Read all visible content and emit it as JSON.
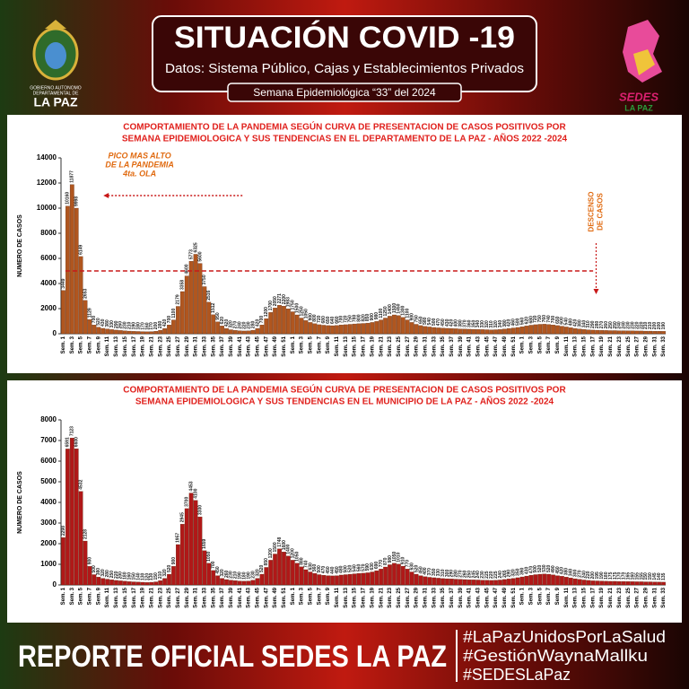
{
  "header": {
    "title": "SITUACIÓN COVID -19",
    "subtitle": "Datos: Sistema Público, Cajas y Establecimientos Privados",
    "week": "Semana  Epidemiológica “33” del  2024",
    "left_logo": [
      "GOBIERNO AUTONOMO",
      "DEPARTAMENTAL DE",
      "LA PAZ"
    ],
    "right_logo": [
      "SEDES",
      "LA PAZ"
    ]
  },
  "footer": {
    "title": "REPORTE OFICIAL SEDES LA PAZ",
    "hashtags": [
      "#LaPazUnidosPorLaSalud",
      "#GestiónWaynaMallku",
      "#SEDESLaPaz"
    ]
  },
  "chart_data": [
    {
      "type": "bar",
      "title": [
        "COMPORTAMIENTO DE LA PANDEMIA  SEGÚN CURVA DE PRESENTACION DE CASOS POSITIVOS POR",
        "SEMANA EPIDEMIOLOGICA Y SUS TENDENCIAS  EN EL DEPARTAMENTO DE LA PAZ  - AÑOS 2022 -2024"
      ],
      "y_label": "NUMERO DE CASOS",
      "color": "#b0561f",
      "ylim": [
        0,
        14000
      ],
      "yticks": [
        0,
        2000,
        4000,
        6000,
        8000,
        10000,
        12000,
        14000
      ],
      "reference_line": 5000,
      "annotations": [
        [
          "PICO MAS ALTO",
          "DE LA PANDEMIA",
          "4ta.  OLA"
        ],
        [
          "DESCENSO",
          "DE CASOS"
        ]
      ],
      "categories": [
        "Sem. 1",
        null,
        "Sem. 3",
        null,
        "Sem. 5",
        null,
        "Sem. 7",
        null,
        "Sem. 9",
        null,
        "Sem. 11",
        null,
        "Sem. 13",
        null,
        "Sem. 15",
        null,
        "Sem. 17",
        null,
        "Sem. 19",
        null,
        "Sem. 21",
        null,
        "Sem. 23",
        null,
        "Sem. 25",
        null,
        "Sem. 27",
        null,
        "Sem. 29",
        null,
        "Sem. 31",
        null,
        "Sem. 33",
        null,
        "Sem. 35",
        null,
        "Sem. 37",
        null,
        "Sem. 39",
        null,
        "Sem. 41",
        null,
        "Sem. 43",
        null,
        "Sem. 45",
        null,
        "Sem. 47",
        null,
        "Sem. 49",
        null,
        "Sem. 51",
        null,
        "Sem. 1",
        null,
        "Sem. 3",
        null,
        "Sem. 5",
        null,
        "Sem. 7",
        null,
        "Sem. 9",
        null,
        "Sem. 11",
        null,
        "Sem. 13",
        null,
        "Sem. 15",
        null,
        "Sem. 17",
        null,
        "Sem. 19",
        null,
        "Sem. 21",
        null,
        "Sem. 23",
        null,
        "Sem. 25",
        null,
        "Sem. 27",
        null,
        "Sem. 29",
        null,
        "Sem. 31",
        null,
        "Sem. 33",
        null,
        "Sem. 35",
        null,
        "Sem. 37",
        null,
        "Sem. 39",
        null,
        "Sem. 41",
        null,
        "Sem. 43",
        null,
        "Sem. 45",
        null,
        "Sem. 47",
        null,
        "Sem. 49",
        null,
        "Sem. 51",
        null,
        "Sem. 1",
        null,
        "Sem. 3",
        null,
        "Sem. 5",
        null,
        "Sem. 7",
        null,
        "Sem. 9",
        null,
        "Sem. 11",
        null,
        "Sem. 13",
        null,
        "Sem. 15",
        null,
        "Sem. 17",
        null,
        "Sem. 19",
        null,
        "Sem. 21",
        null,
        "Sem. 23",
        null,
        "Sem. 25",
        null,
        "Sem. 27",
        null,
        "Sem. 29",
        null,
        "Sem. 31",
        null,
        "Sem. 33"
      ],
      "values": [
        3449,
        10160,
        11877,
        9998,
        6149,
        2653,
        1129,
        700,
        520,
        430,
        380,
        330,
        290,
        260,
        230,
        210,
        190,
        180,
        170,
        160,
        170,
        200,
        280,
        420,
        700,
        1100,
        2179,
        3358,
        4600,
        5773,
        6325,
        5600,
        3750,
        2516,
        1512,
        950,
        620,
        420,
        320,
        270,
        240,
        220,
        230,
        280,
        420,
        700,
        1200,
        1700,
        2050,
        2271,
        2200,
        1983,
        1750,
        1500,
        1250,
        1050,
        900,
        800,
        720,
        680,
        650,
        640,
        660,
        700,
        720,
        750,
        780,
        800,
        820,
        850,
        900,
        980,
        1100,
        1250,
        1400,
        1500,
        1450,
        1300,
        1100,
        900,
        750,
        650,
        580,
        540,
        500,
        470,
        450,
        430,
        420,
        400,
        380,
        370,
        360,
        350,
        340,
        330,
        320,
        310,
        320,
        340,
        380,
        420,
        460,
        500,
        560,
        620,
        680,
        720,
        750,
        760,
        740,
        700,
        650,
        600,
        540,
        480,
        420,
        380,
        340,
        310,
        290,
        280,
        270,
        260,
        250,
        250,
        240,
        240,
        230,
        230,
        220,
        220,
        210,
        210,
        200,
        200,
        190
      ]
    },
    {
      "type": "bar",
      "title": [
        "COMPORTAMIENTO DE LA PANDEMIA  SEGÚN CURVA DE PRESENTACION DE CASOS POSITIVOS POR",
        "SEMANA EPIDEMIOLOGICA Y SUS TENDENCIAS  EN EL MUNICIPIO  DE LA PAZ  - AÑOS 2022 -2024"
      ],
      "y_label": "NUMERO DE CASOS",
      "color": "#b01818",
      "ylim": [
        0,
        8000
      ],
      "yticks": [
        0,
        1000,
        2000,
        3000,
        4000,
        5000,
        6000,
        7000,
        8000
      ],
      "categories": [
        "Sem. 1",
        null,
        "Sem. 3",
        null,
        "Sem. 5",
        null,
        "Sem. 7",
        null,
        "Sem. 9",
        null,
        "Sem. 11",
        null,
        "Sem. 13",
        null,
        "Sem. 15",
        null,
        "Sem. 17",
        null,
        "Sem. 19",
        null,
        "Sem. 21",
        null,
        "Sem. 23",
        null,
        "Sem. 25",
        null,
        "Sem. 27",
        null,
        "Sem. 29",
        null,
        "Sem. 31",
        null,
        "Sem. 33",
        null,
        "Sem. 35",
        null,
        "Sem. 37",
        null,
        "Sem. 39",
        null,
        "Sem. 41",
        null,
        "Sem. 43",
        null,
        "Sem. 45",
        null,
        "Sem. 47",
        null,
        "Sem. 49",
        null,
        "Sem. 51",
        null,
        "Sem. 1",
        null,
        "Sem. 3",
        null,
        "Sem. 5",
        null,
        "Sem. 7",
        null,
        "Sem. 9",
        null,
        "Sem. 11",
        null,
        "Sem. 13",
        null,
        "Sem. 15",
        null,
        "Sem. 17",
        null,
        "Sem. 19",
        null,
        "Sem. 21",
        null,
        "Sem. 23",
        null,
        "Sem. 25",
        null,
        "Sem. 27",
        null,
        "Sem. 29",
        null,
        "Sem. 31",
        null,
        "Sem. 33",
        null,
        "Sem. 35",
        null,
        "Sem. 37",
        null,
        "Sem. 39",
        null,
        "Sem. 41",
        null,
        "Sem. 43",
        null,
        "Sem. 45",
        null,
        "Sem. 47",
        null,
        "Sem. 49",
        null,
        "Sem. 51",
        null,
        "Sem. 1",
        null,
        "Sem. 3",
        null,
        "Sem. 5",
        null,
        "Sem. 7",
        null,
        "Sem. 9",
        null,
        "Sem. 11",
        null,
        "Sem. 13",
        null,
        "Sem. 15",
        null,
        "Sem. 17",
        null,
        "Sem. 19",
        null,
        "Sem. 21",
        null,
        "Sem. 23",
        null,
        "Sem. 25",
        null,
        "Sem. 27",
        null,
        "Sem. 29",
        null,
        "Sem. 31",
        null,
        "Sem. 33"
      ],
      "values": [
        2298,
        6591,
        7123,
        6600,
        4532,
        2128,
        900,
        500,
        380,
        320,
        280,
        250,
        220,
        200,
        180,
        160,
        150,
        140,
        130,
        120,
        130,
        150,
        210,
        320,
        520,
        900,
        1957,
        2945,
        3700,
        4453,
        4100,
        3300,
        1659,
        1050,
        700,
        450,
        320,
        260,
        230,
        210,
        190,
        180,
        190,
        230,
        320,
        520,
        850,
        1200,
        1500,
        1748,
        1600,
        1400,
        1200,
        1050,
        880,
        740,
        630,
        560,
        500,
        470,
        450,
        440,
        450,
        480,
        500,
        520,
        540,
        560,
        570,
        590,
        630,
        690,
        770,
        870,
        980,
        1050,
        1010,
        910,
        770,
        630,
        520,
        450,
        400,
        370,
        350,
        330,
        310,
        300,
        290,
        280,
        270,
        260,
        250,
        245,
        240,
        230,
        225,
        220,
        225,
        240,
        265,
        290,
        320,
        350,
        390,
        430,
        470,
        500,
        520,
        530,
        520,
        490,
        450,
        420,
        380,
        340,
        300,
        270,
        240,
        220,
        200,
        195,
        190,
        180,
        175,
        175,
        170,
        170,
        165,
        160,
        155,
        155,
        150,
        150,
        145,
        140,
        135
      ]
    }
  ]
}
